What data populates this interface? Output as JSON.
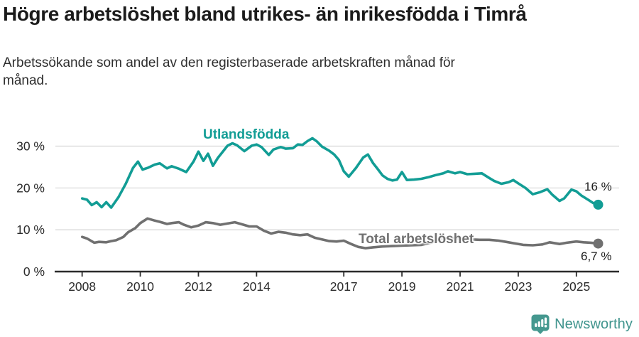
{
  "header": {
    "title": "Högre arbetslöshet bland utrikes- än inrikesfödda i Timrå",
    "subtitle": "Arbetssökande som andel av den registerbaserade arbetskraften månad för månad."
  },
  "chart_data": {
    "type": "line",
    "title": "Högre arbetslöshet bland utrikes- än inrikesfödda i Timrå",
    "subtitle": "Arbetssökande som andel av den registerbaserade arbetskraften månad för månad.",
    "xlabel": "",
    "ylabel": "",
    "grid": true,
    "legend_position": "inline-labels",
    "x_axis": {
      "lim": [
        2007.08,
        2026.47
      ],
      "ticks": [
        "2008",
        "2010",
        "2012",
        "2014",
        "2017",
        "2019",
        "2021",
        "2023",
        "2025"
      ]
    },
    "y_axis": {
      "lim": [
        0,
        32.65
      ],
      "ticks": [
        {
          "value": 0,
          "label": "0 %"
        },
        {
          "value": 10,
          "label": "10 %"
        },
        {
          "value": 20,
          "label": "20 %"
        },
        {
          "value": 30,
          "label": "30 %"
        }
      ]
    },
    "series": [
      {
        "name": "Utlandsfödda",
        "color": "#129d95",
        "end_label": "16 %",
        "end_value": 16.0,
        "points": [
          [
            2008.0,
            17.5
          ],
          [
            2008.17,
            17.2
          ],
          [
            2008.33,
            15.9
          ],
          [
            2008.5,
            16.6
          ],
          [
            2008.67,
            15.4
          ],
          [
            2008.83,
            16.6
          ],
          [
            2009.0,
            15.3
          ],
          [
            2009.25,
            17.8
          ],
          [
            2009.5,
            21.0
          ],
          [
            2009.75,
            24.8
          ],
          [
            2009.92,
            26.3
          ],
          [
            2010.08,
            24.4
          ],
          [
            2010.25,
            24.8
          ],
          [
            2010.5,
            25.6
          ],
          [
            2010.67,
            25.9
          ],
          [
            2010.92,
            24.7
          ],
          [
            2011.08,
            25.2
          ],
          [
            2011.33,
            24.6
          ],
          [
            2011.58,
            23.8
          ],
          [
            2011.83,
            26.3
          ],
          [
            2012.0,
            28.7
          ],
          [
            2012.17,
            26.5
          ],
          [
            2012.33,
            28.2
          ],
          [
            2012.5,
            25.3
          ],
          [
            2012.67,
            27.2
          ],
          [
            2012.83,
            28.6
          ],
          [
            2013.0,
            30.1
          ],
          [
            2013.17,
            30.7
          ],
          [
            2013.33,
            30.2
          ],
          [
            2013.58,
            28.8
          ],
          [
            2013.83,
            30.1
          ],
          [
            2014.0,
            30.4
          ],
          [
            2014.17,
            29.8
          ],
          [
            2014.42,
            27.9
          ],
          [
            2014.58,
            29.2
          ],
          [
            2014.83,
            29.8
          ],
          [
            2015.0,
            29.4
          ],
          [
            2015.25,
            29.5
          ],
          [
            2015.42,
            30.4
          ],
          [
            2015.58,
            30.3
          ],
          [
            2015.75,
            31.2
          ],
          [
            2015.92,
            31.9
          ],
          [
            2016.08,
            31.1
          ],
          [
            2016.25,
            29.9
          ],
          [
            2016.5,
            28.9
          ],
          [
            2016.67,
            28.0
          ],
          [
            2016.83,
            26.7
          ],
          [
            2017.0,
            24.0
          ],
          [
            2017.17,
            22.7
          ],
          [
            2017.42,
            24.8
          ],
          [
            2017.67,
            27.3
          ],
          [
            2017.83,
            28.0
          ],
          [
            2018.0,
            26.0
          ],
          [
            2018.17,
            24.5
          ],
          [
            2018.33,
            23.0
          ],
          [
            2018.5,
            22.2
          ],
          [
            2018.67,
            21.8
          ],
          [
            2018.83,
            22.0
          ],
          [
            2019.0,
            23.8
          ],
          [
            2019.17,
            21.9
          ],
          [
            2019.42,
            22.0
          ],
          [
            2019.67,
            22.2
          ],
          [
            2019.92,
            22.6
          ],
          [
            2020.17,
            23.1
          ],
          [
            2020.42,
            23.5
          ],
          [
            2020.58,
            24.0
          ],
          [
            2020.83,
            23.5
          ],
          [
            2021.0,
            23.8
          ],
          [
            2021.25,
            23.3
          ],
          [
            2021.5,
            23.4
          ],
          [
            2021.75,
            23.5
          ],
          [
            2022.0,
            22.4
          ],
          [
            2022.17,
            21.7
          ],
          [
            2022.42,
            21.0
          ],
          [
            2022.67,
            21.4
          ],
          [
            2022.83,
            21.9
          ],
          [
            2023.0,
            21.1
          ],
          [
            2023.25,
            20.0
          ],
          [
            2023.5,
            18.5
          ],
          [
            2023.75,
            19.0
          ],
          [
            2024.0,
            19.7
          ],
          [
            2024.17,
            18.4
          ],
          [
            2024.42,
            16.9
          ],
          [
            2024.58,
            17.5
          ],
          [
            2024.83,
            19.6
          ],
          [
            2025.0,
            19.2
          ],
          [
            2025.17,
            18.2
          ],
          [
            2025.42,
            17.1
          ],
          [
            2025.58,
            16.4
          ],
          [
            2025.75,
            16.0
          ]
        ]
      },
      {
        "name": "Total arbetslöshet",
        "color": "#707070",
        "end_label": "6,7 %",
        "end_value": 6.7,
        "points": [
          [
            2008.0,
            8.3
          ],
          [
            2008.17,
            7.9
          ],
          [
            2008.42,
            6.9
          ],
          [
            2008.58,
            7.1
          ],
          [
            2008.83,
            7.0
          ],
          [
            2009.0,
            7.3
          ],
          [
            2009.17,
            7.5
          ],
          [
            2009.42,
            8.3
          ],
          [
            2009.58,
            9.4
          ],
          [
            2009.83,
            10.4
          ],
          [
            2010.0,
            11.6
          ],
          [
            2010.25,
            12.7
          ],
          [
            2010.5,
            12.2
          ],
          [
            2010.67,
            11.9
          ],
          [
            2010.92,
            11.4
          ],
          [
            2011.08,
            11.6
          ],
          [
            2011.33,
            11.8
          ],
          [
            2011.5,
            11.2
          ],
          [
            2011.75,
            10.6
          ],
          [
            2012.0,
            11.0
          ],
          [
            2012.25,
            11.8
          ],
          [
            2012.5,
            11.6
          ],
          [
            2012.75,
            11.2
          ],
          [
            2013.0,
            11.5
          ],
          [
            2013.25,
            11.8
          ],
          [
            2013.5,
            11.3
          ],
          [
            2013.75,
            10.8
          ],
          [
            2014.0,
            10.8
          ],
          [
            2014.25,
            9.8
          ],
          [
            2014.5,
            9.1
          ],
          [
            2014.75,
            9.5
          ],
          [
            2015.0,
            9.3
          ],
          [
            2015.25,
            8.9
          ],
          [
            2015.5,
            8.7
          ],
          [
            2015.75,
            8.9
          ],
          [
            2016.0,
            8.1
          ],
          [
            2016.25,
            7.7
          ],
          [
            2016.5,
            7.3
          ],
          [
            2016.75,
            7.2
          ],
          [
            2017.0,
            7.4
          ],
          [
            2017.25,
            6.6
          ],
          [
            2017.5,
            5.9
          ],
          [
            2017.75,
            5.6
          ],
          [
            2018.0,
            5.8
          ],
          [
            2018.33,
            6.0
          ],
          [
            2018.67,
            6.1
          ],
          [
            2019.0,
            6.2
          ],
          [
            2019.33,
            6.3
          ],
          [
            2019.67,
            6.4
          ],
          [
            2020.0,
            6.9
          ],
          [
            2020.33,
            7.9
          ],
          [
            2020.67,
            8.1
          ],
          [
            2021.0,
            7.9
          ],
          [
            2021.33,
            7.7
          ],
          [
            2021.67,
            7.6
          ],
          [
            2022.0,
            7.6
          ],
          [
            2022.33,
            7.4
          ],
          [
            2022.58,
            7.1
          ],
          [
            2022.83,
            6.8
          ],
          [
            2023.17,
            6.4
          ],
          [
            2023.5,
            6.3
          ],
          [
            2023.83,
            6.5
          ],
          [
            2024.08,
            7.0
          ],
          [
            2024.42,
            6.6
          ],
          [
            2024.67,
            6.9
          ],
          [
            2025.0,
            7.2
          ],
          [
            2025.25,
            7.0
          ],
          [
            2025.5,
            6.9
          ],
          [
            2025.75,
            6.7
          ]
        ]
      }
    ],
    "colors": {
      "grid": "#d9d9d9",
      "axis": "#2b2b2b",
      "tick_text": "#2b2b2b"
    }
  },
  "footer": {
    "brand": "Newsworthy",
    "brand_color": "#3f948d",
    "logo_color": "#45988f"
  }
}
